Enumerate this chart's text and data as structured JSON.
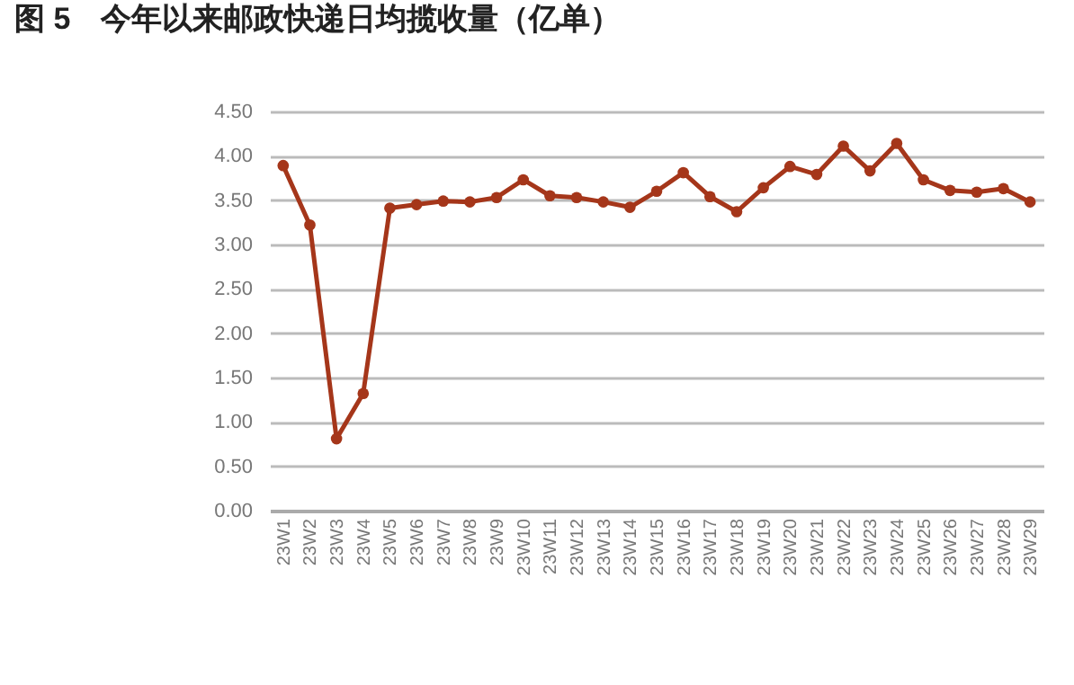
{
  "chart_data": {
    "type": "line",
    "title": "图 5　今年以来邮政快递日均揽收量（亿单）",
    "categories": [
      "23W1",
      "23W2",
      "23W3",
      "23W4",
      "23W5",
      "23W6",
      "23W7",
      "23W8",
      "23W9",
      "23W10",
      "23W11",
      "23W12",
      "23W13",
      "23W14",
      "23W15",
      "23W16",
      "23W17",
      "23W18",
      "23W19",
      "23W20",
      "23W21",
      "23W22",
      "23W23",
      "23W24",
      "23W25",
      "23W26",
      "23W27",
      "23W28",
      "23W29"
    ],
    "series": [
      {
        "color": "#a5361a",
        "values": [
          3.89,
          3.22,
          0.81,
          1.32,
          3.41,
          3.45,
          3.49,
          3.48,
          3.53,
          3.73,
          3.55,
          3.53,
          3.48,
          3.42,
          3.6,
          3.81,
          3.54,
          3.37,
          3.64,
          3.88,
          3.79,
          4.11,
          3.83,
          4.14,
          3.73,
          3.61,
          3.59,
          3.63,
          3.48
        ]
      }
    ],
    "ylim": [
      0,
      4.5
    ],
    "yticks": [
      {
        "value": 0,
        "label": "0.00"
      },
      {
        "value": 0.5,
        "label": "0.50"
      },
      {
        "value": 1,
        "label": "1.00"
      },
      {
        "value": 1.5,
        "label": "1.50"
      },
      {
        "value": 2,
        "label": "2.00"
      },
      {
        "value": 2.5,
        "label": "2.50"
      },
      {
        "value": 3,
        "label": "3.00"
      },
      {
        "value": 3.5,
        "label": "3.50"
      },
      {
        "value": 4,
        "label": "4.00"
      },
      {
        "value": 4.5,
        "label": "4.50"
      }
    ],
    "grid": "y",
    "marker": "circle",
    "line_style": "solid"
  }
}
